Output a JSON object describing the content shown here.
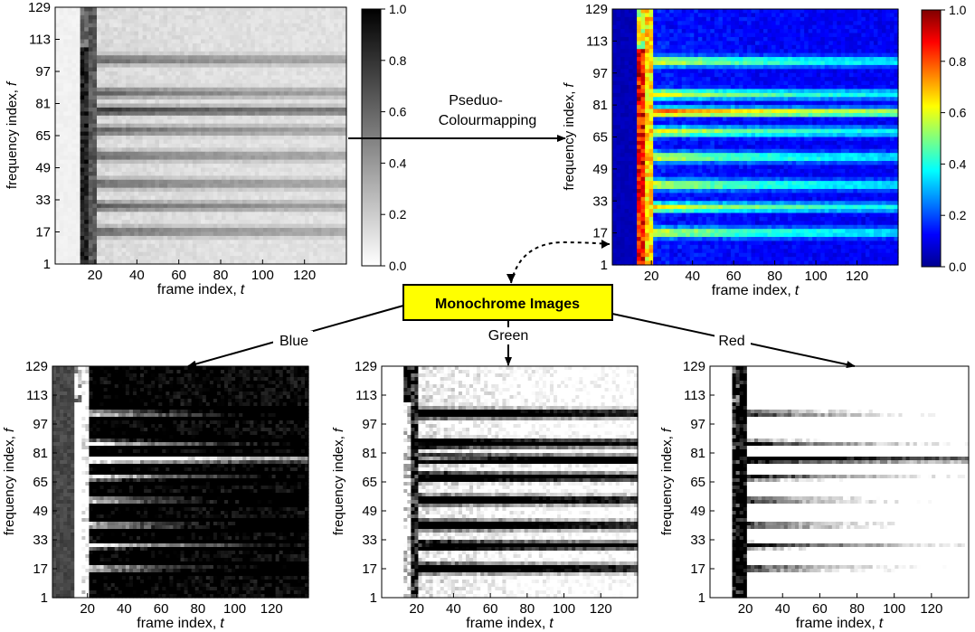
{
  "panels": {
    "grayscale": {
      "y_ticks": [
        "1",
        "17",
        "33",
        "49",
        "65",
        "81",
        "97",
        "113",
        "129"
      ],
      "x_ticks": [
        "20",
        "40",
        "60",
        "80",
        "100",
        "120"
      ],
      "x_label": "frame index,",
      "x_symbol": "t",
      "y_label": "frequency index,",
      "y_symbol": "f",
      "colorbar_ticks": [
        "0.0",
        "0.2",
        "0.4",
        "0.6",
        "0.8",
        "1.0"
      ]
    },
    "colour": {
      "y_ticks": [
        "1",
        "17",
        "33",
        "49",
        "65",
        "81",
        "97",
        "113",
        "129"
      ],
      "x_ticks": [
        "20",
        "40",
        "60",
        "80",
        "100",
        "120"
      ],
      "x_label": "frame index,",
      "x_symbol": "t",
      "y_label": "frequency index,",
      "y_symbol": "f",
      "colorbar_ticks": [
        "0.0",
        "0.2",
        "0.4",
        "0.6",
        "0.8",
        "1.0"
      ]
    },
    "blue": {
      "y_ticks": [
        "1",
        "17",
        "33",
        "49",
        "65",
        "81",
        "97",
        "113",
        "129"
      ],
      "x_ticks": [
        "20",
        "40",
        "60",
        "80",
        "100",
        "120"
      ],
      "x_label": "frame index,",
      "x_symbol": "t",
      "y_label": "frequency index,",
      "y_symbol": "f"
    },
    "green": {
      "y_ticks": [
        "1",
        "17",
        "33",
        "49",
        "65",
        "81",
        "97",
        "113",
        "129"
      ],
      "x_ticks": [
        "20",
        "40",
        "60",
        "80",
        "100",
        "120"
      ],
      "x_label": "frame index,",
      "x_symbol": "t",
      "y_label": "frequency index,",
      "y_symbol": "f"
    },
    "red": {
      "y_ticks": [
        "1",
        "17",
        "33",
        "49",
        "65",
        "81",
        "97",
        "113",
        "129"
      ],
      "x_ticks": [
        "20",
        "40",
        "60",
        "80",
        "100",
        "120"
      ],
      "x_label": "frame index,",
      "x_symbol": "t",
      "y_label": "frequency index,",
      "y_symbol": "f"
    }
  },
  "flow": {
    "pseudo_label_line1": "Pseduo-",
    "pseudo_label_line2": "Colourmapping",
    "monochrome_label": "Monochrome Images",
    "blue_label": "Blue",
    "green_label": "Green",
    "red_label": "Red"
  },
  "colors": {
    "monochrome_box_fill": "#ffff00",
    "jet_low": "#00008f",
    "jet_high": "#800000"
  }
}
